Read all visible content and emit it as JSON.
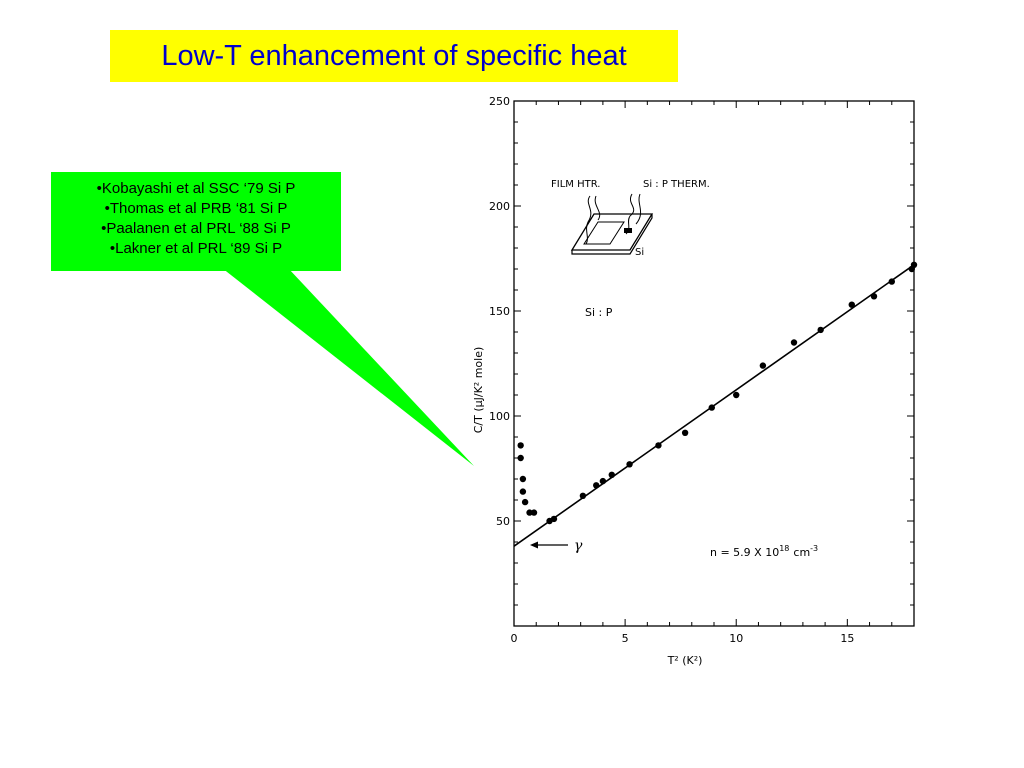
{
  "title": "Low-T enhancement of specific heat",
  "callout": {
    "refs": [
      "•Kobayashi et al SSC ‘79 Si P",
      "•Thomas et al PRB ‘81 Si P",
      "•Paalanen et al PRL ‘88 Si P",
      "•Lakner et al PRL ‘89 Si P"
    ],
    "fill": "#00ff00"
  },
  "title_colors": {
    "background": "#ffff00",
    "text": "#0000cc"
  },
  "chart_data": {
    "type": "scatter",
    "xlabel": "T² (K²)",
    "ylabel": "C/T (μJ/K² mole)",
    "xlim": [
      0,
      18
    ],
    "ylim": [
      0,
      250
    ],
    "x_ticks": [
      "0",
      "5",
      "10",
      "15"
    ],
    "y_ticks": [
      "50",
      "100",
      "150",
      "200",
      "250"
    ],
    "x_tick_values": [
      0,
      5,
      10,
      15
    ],
    "y_tick_values": [
      50,
      100,
      150,
      200,
      250
    ],
    "points": [
      {
        "x": 0.3,
        "y": 86
      },
      {
        "x": 0.3,
        "y": 80
      },
      {
        "x": 0.4,
        "y": 70
      },
      {
        "x": 0.4,
        "y": 64
      },
      {
        "x": 0.5,
        "y": 59
      },
      {
        "x": 0.7,
        "y": 54
      },
      {
        "x": 0.9,
        "y": 54
      },
      {
        "x": 1.6,
        "y": 50
      },
      {
        "x": 1.8,
        "y": 51
      },
      {
        "x": 3.1,
        "y": 62
      },
      {
        "x": 3.7,
        "y": 67
      },
      {
        "x": 4.0,
        "y": 69
      },
      {
        "x": 4.4,
        "y": 72
      },
      {
        "x": 5.2,
        "y": 77
      },
      {
        "x": 6.5,
        "y": 86
      },
      {
        "x": 7.7,
        "y": 92
      },
      {
        "x": 8.9,
        "y": 104
      },
      {
        "x": 10.0,
        "y": 110
      },
      {
        "x": 11.2,
        "y": 124
      },
      {
        "x": 12.6,
        "y": 135
      },
      {
        "x": 13.8,
        "y": 141
      },
      {
        "x": 15.2,
        "y": 153
      },
      {
        "x": 16.2,
        "y": 157
      },
      {
        "x": 17.0,
        "y": 164
      },
      {
        "x": 17.9,
        "y": 170
      },
      {
        "x": 18.0,
        "y": 172
      }
    ],
    "fit_line": {
      "x0": 0,
      "y0": 38,
      "x1": 18,
      "y1": 172
    },
    "annotations": {
      "gamma_label": "γ",
      "density": "n = 5.9 X 10",
      "density_exp": "18",
      "density_unit": "cm",
      "density_unit_exp": "-3",
      "material": "Si : P",
      "inset_film": "FILM HTR.",
      "inset_therm": "Si : P  THERM.",
      "inset_si": "Si"
    },
    "grid": false
  }
}
